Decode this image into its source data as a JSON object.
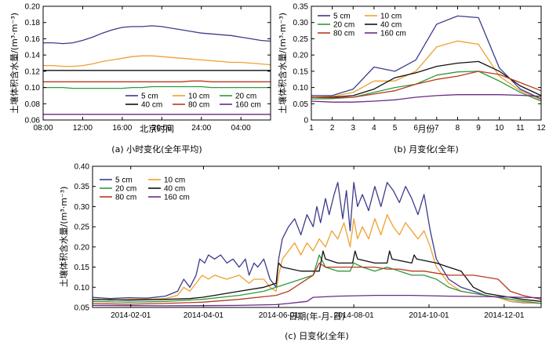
{
  "colors": {
    "d5": "#3c3c8c",
    "d10": "#f0a030",
    "d20": "#2e9a3e",
    "d40": "#111111",
    "d80": "#b83a1e",
    "d160": "#6a2a86"
  },
  "chart_data": [
    {
      "type": "line",
      "caption": "(a) 小时变化(全年平均)",
      "xlabel": "北京时间",
      "ylabel": "土壤体积含水量/(m³·m⁻³)",
      "ylim": [
        0.06,
        0.2
      ],
      "yticks": [
        "0.06",
        "0.08",
        "0.10",
        "0.12",
        "0.14",
        "0.16",
        "0.18",
        "0.20"
      ],
      "xrange": [
        8,
        31
      ],
      "xticks": [
        {
          "x": 8,
          "label": "08:00"
        },
        {
          "x": 12,
          "label": "12:00"
        },
        {
          "x": 16,
          "label": "16:00"
        },
        {
          "x": 20,
          "label": "20:00"
        },
        {
          "x": 24,
          "label": "24:00"
        },
        {
          "x": 28,
          "label": "04:00"
        }
      ],
      "grid": false,
      "legend": "bottom-right",
      "x": [
        8,
        9,
        10,
        11,
        12,
        13,
        14,
        15,
        16,
        17,
        18,
        19,
        20,
        21,
        22,
        23,
        24,
        25,
        26,
        27,
        28,
        29,
        30,
        31
      ],
      "series": [
        {
          "name": "5 cm",
          "key": "d5",
          "values": [
            0.155,
            0.155,
            0.154,
            0.155,
            0.158,
            0.162,
            0.167,
            0.171,
            0.174,
            0.175,
            0.175,
            0.176,
            0.175,
            0.173,
            0.171,
            0.169,
            0.167,
            0.166,
            0.165,
            0.164,
            0.162,
            0.16,
            0.158,
            0.157
          ]
        },
        {
          "name": "10 cm",
          "key": "d10",
          "values": [
            0.127,
            0.127,
            0.126,
            0.126,
            0.127,
            0.129,
            0.132,
            0.134,
            0.136,
            0.138,
            0.139,
            0.139,
            0.138,
            0.137,
            0.136,
            0.135,
            0.134,
            0.133,
            0.132,
            0.131,
            0.131,
            0.13,
            0.129,
            0.128
          ]
        },
        {
          "name": "20 cm",
          "key": "d20",
          "values": [
            0.1,
            0.1,
            0.1,
            0.099,
            0.099,
            0.099,
            0.099,
            0.099,
            0.099,
            0.1,
            0.1,
            0.101,
            0.101,
            0.101,
            0.101,
            0.101,
            0.101,
            0.1,
            0.1,
            0.1,
            0.1,
            0.1,
            0.1,
            0.1
          ]
        },
        {
          "name": "40 cm",
          "key": "d40",
          "values": [
            0.121,
            0.121,
            0.121,
            0.121,
            0.121,
            0.121,
            0.121,
            0.121,
            0.121,
            0.121,
            0.121,
            0.121,
            0.121,
            0.121,
            0.121,
            0.121,
            0.121,
            0.121,
            0.121,
            0.121,
            0.121,
            0.121,
            0.121,
            0.121
          ]
        },
        {
          "name": "80 cm",
          "key": "d80",
          "values": [
            0.107,
            0.107,
            0.107,
            0.107,
            0.107,
            0.107,
            0.107,
            0.107,
            0.107,
            0.107,
            0.107,
            0.107,
            0.107,
            0.107,
            0.107,
            0.108,
            0.108,
            0.107,
            0.107,
            0.107,
            0.107,
            0.107,
            0.107,
            0.107
          ]
        },
        {
          "name": "160 cm",
          "key": "d160",
          "values": [
            0.067,
            0.067,
            0.067,
            0.067,
            0.067,
            0.067,
            0.067,
            0.067,
            0.067,
            0.067,
            0.067,
            0.067,
            0.067,
            0.067,
            0.067,
            0.067,
            0.067,
            0.067,
            0.067,
            0.067,
            0.067,
            0.067,
            0.067,
            0.067
          ]
        }
      ]
    },
    {
      "type": "line",
      "caption": "(b) 月变化(全年)",
      "xlabel": "月份",
      "ylabel": "土壤体积含水量/(m³·m⁻³)",
      "ylim": [
        0.0,
        0.35
      ],
      "yticks": [
        "0",
        "0.05",
        "0.10",
        "0.15",
        "0.20",
        "0.25",
        "0.30",
        "0.35"
      ],
      "xrange": [
        1,
        12
      ],
      "xticks": [
        {
          "x": 1,
          "label": "1"
        },
        {
          "x": 2,
          "label": "2"
        },
        {
          "x": 3,
          "label": "3"
        },
        {
          "x": 4,
          "label": "4"
        },
        {
          "x": 5,
          "label": "5"
        },
        {
          "x": 6,
          "label": "6"
        },
        {
          "x": 7,
          "label": "7"
        },
        {
          "x": 8,
          "label": "8"
        },
        {
          "x": 9,
          "label": "9"
        },
        {
          "x": 10,
          "label": "10"
        },
        {
          "x": 11,
          "label": "11"
        },
        {
          "x": 12,
          "label": "12"
        }
      ],
      "grid": false,
      "legend": "top-left",
      "x": [
        1,
        2,
        3,
        4,
        5,
        6,
        7,
        8,
        9,
        10,
        11,
        12
      ],
      "series": [
        {
          "name": "5 cm",
          "key": "d5",
          "values": [
            0.075,
            0.075,
            0.095,
            0.163,
            0.15,
            0.185,
            0.295,
            0.32,
            0.315,
            0.16,
            0.095,
            0.065
          ]
        },
        {
          "name": "10 cm",
          "key": "d10",
          "values": [
            0.07,
            0.072,
            0.085,
            0.12,
            0.12,
            0.15,
            0.225,
            0.243,
            0.233,
            0.135,
            0.09,
            0.062
          ]
        },
        {
          "name": "20 cm",
          "key": "d20",
          "values": [
            0.065,
            0.066,
            0.07,
            0.085,
            0.1,
            0.11,
            0.138,
            0.148,
            0.15,
            0.12,
            0.085,
            0.058
          ]
        },
        {
          "name": "40 cm",
          "key": "d40",
          "values": [
            0.07,
            0.07,
            0.075,
            0.095,
            0.13,
            0.145,
            0.165,
            0.175,
            0.18,
            0.15,
            0.105,
            0.075
          ]
        },
        {
          "name": "80 cm",
          "key": "d80",
          "values": [
            0.07,
            0.068,
            0.07,
            0.08,
            0.09,
            0.11,
            0.125,
            0.135,
            0.15,
            0.14,
            0.115,
            0.09
          ]
        },
        {
          "name": "160 cm",
          "key": "d160",
          "values": [
            0.058,
            0.055,
            0.055,
            0.058,
            0.062,
            0.07,
            0.075,
            0.078,
            0.078,
            0.078,
            0.076,
            0.073
          ]
        }
      ]
    },
    {
      "type": "line",
      "caption": "(c) 日变化(全年)",
      "xlabel": "日期(年-月-日)",
      "ylabel": "土壤体积含水量/(m³·m⁻³)",
      "ylim": [
        0.05,
        0.4
      ],
      "yticks": [
        "0.05",
        "0.10",
        "0.15",
        "0.20",
        "0.25",
        "0.30",
        "0.35",
        "0.40"
      ],
      "xrange": [
        1,
        365
      ],
      "xticks": [
        {
          "x": 32,
          "label": "2014-02-01"
        },
        {
          "x": 91,
          "label": "2014-04-01"
        },
        {
          "x": 152,
          "label": "2014-06-01"
        },
        {
          "x": 213,
          "label": "2014-08-01"
        },
        {
          "x": 274,
          "label": "2014-10-01"
        },
        {
          "x": 335,
          "label": "2014-12-01"
        }
      ],
      "grid": false,
      "legend": "top-left",
      "series": [
        {
          "name": "5 cm",
          "key": "d5",
          "x": [
            1,
            15,
            30,
            45,
            60,
            70,
            75,
            80,
            85,
            88,
            92,
            95,
            100,
            105,
            110,
            115,
            120,
            125,
            128,
            132,
            135,
            140,
            145,
            150,
            152,
            155,
            160,
            165,
            170,
            175,
            180,
            183,
            186,
            190,
            193,
            197,
            200,
            204,
            207,
            210,
            213,
            216,
            220,
            225,
            230,
            235,
            240,
            245,
            250,
            255,
            260,
            265,
            270,
            275,
            280,
            290,
            300,
            310,
            320,
            330,
            340,
            350,
            365
          ],
          "values": [
            0.075,
            0.072,
            0.074,
            0.073,
            0.078,
            0.09,
            0.12,
            0.1,
            0.13,
            0.17,
            0.16,
            0.18,
            0.17,
            0.18,
            0.16,
            0.17,
            0.15,
            0.17,
            0.13,
            0.16,
            0.15,
            0.17,
            0.12,
            0.1,
            0.17,
            0.22,
            0.25,
            0.27,
            0.23,
            0.28,
            0.25,
            0.3,
            0.26,
            0.32,
            0.28,
            0.33,
            0.36,
            0.27,
            0.34,
            0.24,
            0.36,
            0.3,
            0.33,
            0.29,
            0.35,
            0.3,
            0.36,
            0.34,
            0.31,
            0.35,
            0.32,
            0.28,
            0.33,
            0.24,
            0.17,
            0.12,
            0.1,
            0.09,
            0.08,
            0.075,
            0.065,
            0.062,
            0.06
          ]
        },
        {
          "name": "10 cm",
          "key": "d10",
          "x": [
            1,
            15,
            30,
            45,
            60,
            70,
            75,
            80,
            85,
            90,
            95,
            100,
            110,
            120,
            128,
            132,
            140,
            145,
            150,
            152,
            155,
            160,
            165,
            170,
            175,
            180,
            185,
            190,
            195,
            200,
            205,
            210,
            213,
            216,
            220,
            225,
            230,
            235,
            240,
            245,
            250,
            255,
            260,
            265,
            270,
            275,
            280,
            290,
            300,
            310,
            320,
            330,
            340,
            350,
            365
          ],
          "values": [
            0.07,
            0.068,
            0.07,
            0.07,
            0.072,
            0.08,
            0.1,
            0.09,
            0.11,
            0.13,
            0.12,
            0.13,
            0.12,
            0.13,
            0.11,
            0.12,
            0.12,
            0.1,
            0.09,
            0.13,
            0.17,
            0.19,
            0.21,
            0.18,
            0.21,
            0.19,
            0.22,
            0.2,
            0.24,
            0.22,
            0.26,
            0.2,
            0.27,
            0.22,
            0.25,
            0.22,
            0.27,
            0.23,
            0.28,
            0.25,
            0.23,
            0.26,
            0.24,
            0.22,
            0.24,
            0.2,
            0.15,
            0.11,
            0.09,
            0.085,
            0.08,
            0.075,
            0.065,
            0.063,
            0.06
          ]
        },
        {
          "name": "20 cm",
          "key": "d20",
          "x": [
            1,
            30,
            60,
            90,
            120,
            140,
            150,
            160,
            170,
            180,
            185,
            190,
            200,
            210,
            213,
            220,
            230,
            240,
            250,
            260,
            270,
            280,
            290,
            300,
            320,
            340,
            365
          ],
          "values": [
            0.065,
            0.063,
            0.065,
            0.07,
            0.08,
            0.09,
            0.1,
            0.11,
            0.12,
            0.13,
            0.18,
            0.15,
            0.14,
            0.14,
            0.16,
            0.15,
            0.14,
            0.15,
            0.14,
            0.13,
            0.13,
            0.12,
            0.1,
            0.09,
            0.08,
            0.07,
            0.06
          ]
        },
        {
          "name": "40 cm",
          "key": "d40",
          "x": [
            1,
            30,
            60,
            80,
            90,
            100,
            120,
            140,
            150,
            151,
            152,
            155,
            170,
            185,
            188,
            190,
            200,
            212,
            214,
            216,
            230,
            240,
            242,
            244,
            260,
            262,
            264,
            280,
            290,
            300,
            305,
            310,
            320,
            330,
            340,
            350,
            365
          ],
          "values": [
            0.07,
            0.068,
            0.07,
            0.072,
            0.075,
            0.08,
            0.09,
            0.1,
            0.11,
            0.14,
            0.16,
            0.15,
            0.14,
            0.14,
            0.19,
            0.17,
            0.16,
            0.16,
            0.19,
            0.17,
            0.16,
            0.16,
            0.19,
            0.17,
            0.16,
            0.18,
            0.17,
            0.16,
            0.15,
            0.14,
            0.12,
            0.1,
            0.085,
            0.08,
            0.075,
            0.07,
            0.065
          ]
        },
        {
          "name": "80 cm",
          "key": "d80",
          "x": [
            1,
            30,
            60,
            90,
            120,
            150,
            160,
            170,
            180,
            185,
            190,
            200,
            210,
            220,
            230,
            240,
            250,
            260,
            270,
            280,
            290,
            300,
            310,
            320,
            330,
            340,
            350,
            365
          ],
          "values": [
            0.06,
            0.058,
            0.06,
            0.063,
            0.07,
            0.08,
            0.09,
            0.11,
            0.13,
            0.16,
            0.15,
            0.15,
            0.15,
            0.15,
            0.15,
            0.145,
            0.145,
            0.14,
            0.14,
            0.135,
            0.13,
            0.13,
            0.13,
            0.125,
            0.12,
            0.09,
            0.08,
            0.07
          ]
        },
        {
          "name": "160 cm",
          "key": "d160",
          "x": [
            1,
            60,
            120,
            150,
            160,
            175,
            180,
            200,
            230,
            260,
            290,
            320,
            350,
            365
          ],
          "values": [
            0.055,
            0.054,
            0.055,
            0.057,
            0.06,
            0.065,
            0.075,
            0.078,
            0.08,
            0.08,
            0.078,
            0.077,
            0.075,
            0.074
          ]
        }
      ]
    }
  ]
}
